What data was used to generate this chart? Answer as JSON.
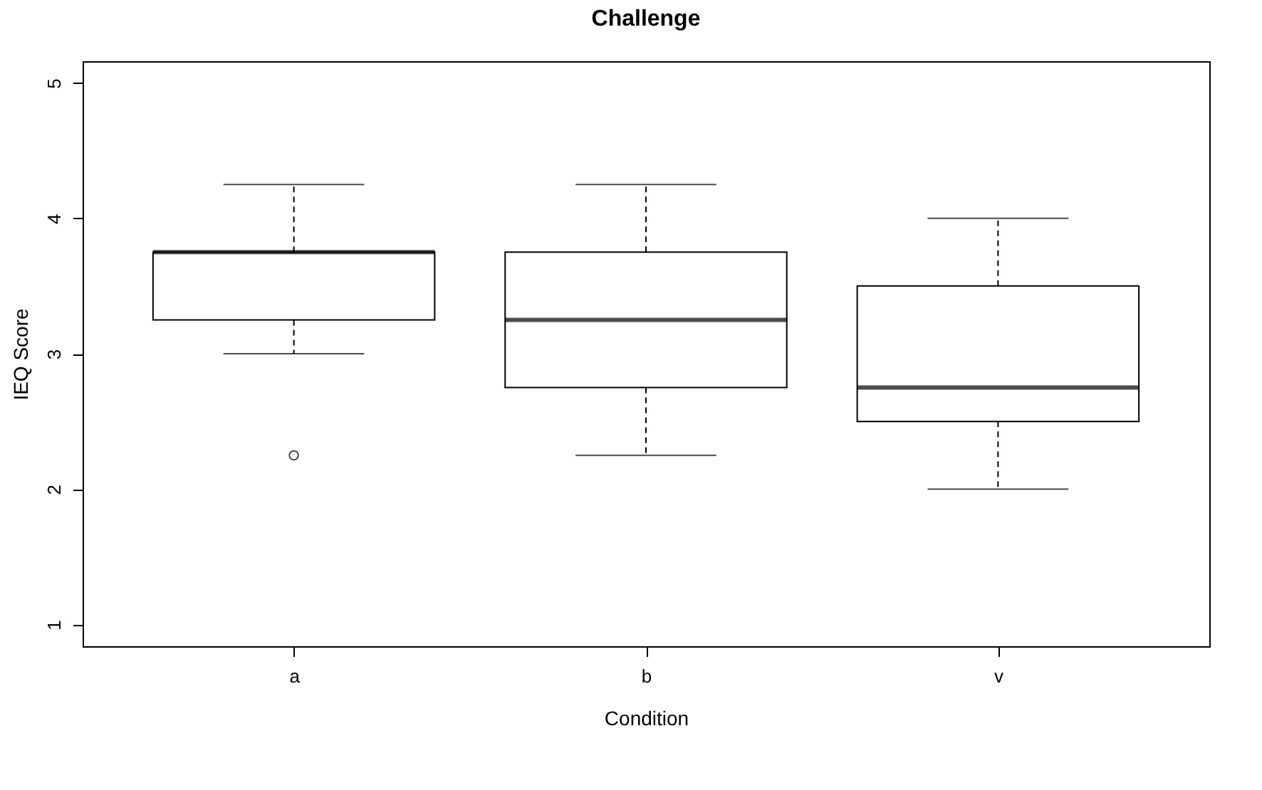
{
  "chart_data": {
    "type": "box",
    "title": "Challenge",
    "xlabel": "Condition",
    "ylabel": "IEQ Score",
    "categories": [
      "a",
      "b",
      "v"
    ],
    "boxes": [
      {
        "low": 3,
        "q1": 3.25,
        "median": 3.75,
        "q3": 3.75,
        "high": 4.25,
        "outliers": [
          2.25
        ]
      },
      {
        "low": 2.25,
        "q1": 2.75,
        "median": 3.25,
        "q3": 3.75,
        "high": 4.25
      },
      {
        "low": 2,
        "q1": 2.5,
        "median": 2.75,
        "q3": 3.5,
        "high": 4
      }
    ],
    "ylim": [
      0.84,
      5.16
    ],
    "yticks": [
      1,
      2,
      3,
      4,
      5
    ]
  }
}
